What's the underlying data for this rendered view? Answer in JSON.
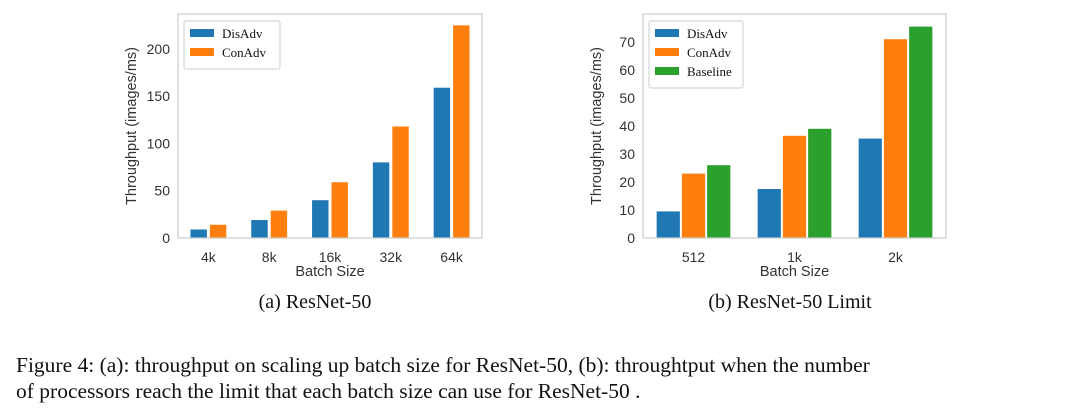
{
  "chart_data": [
    {
      "type": "bar",
      "title": "",
      "subcaption": "(a) ResNet-50",
      "xlabel": "Batch Size",
      "ylabel": "Throughput (images/ms)",
      "categories": [
        "4k",
        "8k",
        "16k",
        "32k",
        "64k"
      ],
      "series": [
        {
          "name": "DisAdv",
          "color": "#1f77b4",
          "values": [
            9,
            19,
            40,
            80,
            159
          ]
        },
        {
          "name": "ConAdv",
          "color": "#ff7f0e",
          "values": [
            14,
            29,
            59,
            118,
            225
          ]
        }
      ],
      "ylim": [
        0,
        237
      ],
      "yticks": [
        0,
        50,
        100,
        150,
        200
      ],
      "grid": false,
      "legend": "top-left"
    },
    {
      "type": "bar",
      "title": "",
      "subcaption": "(b) ResNet-50 Limit",
      "xlabel": "Batch Size",
      "ylabel": "Throughput (images/ms)",
      "categories": [
        "512",
        "1k",
        "2k"
      ],
      "series": [
        {
          "name": "DisAdv",
          "color": "#1f77b4",
          "values": [
            9.5,
            17.5,
            35.5
          ]
        },
        {
          "name": "ConAdv",
          "color": "#ff7f0e",
          "values": [
            23,
            36.5,
            71
          ]
        },
        {
          "name": "Baseline",
          "color": "#2ca02c",
          "values": [
            26,
            39,
            75.5
          ]
        }
      ],
      "ylim": [
        0,
        80
      ],
      "yticks": [
        0,
        10,
        20,
        30,
        40,
        50,
        60,
        70
      ],
      "grid": false,
      "legend": "top-left"
    }
  ],
  "figure_caption": {
    "line1": "Figure 4:  (a): throughput on scaling up batch size for ResNet-50, (b): throughtput when the number",
    "line2": "of processors reach the limit that each batch size can use for ResNet-50 ."
  }
}
